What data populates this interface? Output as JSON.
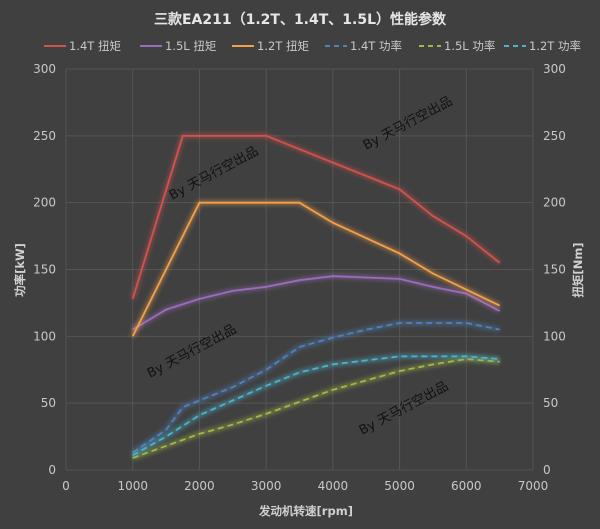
{
  "chart_data": {
    "type": "line",
    "title": "三款EA211（1.2T、1.4T、1.5L）性能参数",
    "xlabel": "发动机转速[rpm]",
    "ylabel_left": "功率[kW]",
    "ylabel_right": "扭矩[Nm]",
    "xlim": [
      0,
      7000
    ],
    "ylim_left": [
      0,
      300
    ],
    "ylim_right": [
      0,
      300
    ],
    "xticks": [
      0,
      1000,
      2000,
      3000,
      4000,
      5000,
      6000,
      7000
    ],
    "yticks": [
      0,
      50,
      100,
      150,
      200,
      250,
      300
    ],
    "grid": true,
    "legend_position": "top",
    "series": [
      {
        "name": "1.4T 扭矩",
        "axis": "right",
        "style": "solid",
        "color": "#d0534e",
        "x": [
          1000,
          1750,
          3000,
          3500,
          4000,
          5000,
          5500,
          6000,
          6500
        ],
        "y": [
          128,
          250,
          250,
          240,
          230,
          210,
          190,
          175,
          155
        ]
      },
      {
        "name": "1.5L 扭矩",
        "axis": "right",
        "style": "solid",
        "color": "#9b6cbb",
        "x": [
          1000,
          1500,
          2000,
          2500,
          3000,
          3500,
          4000,
          5000,
          5500,
          6000,
          6500
        ],
        "y": [
          105,
          120,
          128,
          134,
          137,
          142,
          145,
          143,
          137,
          132,
          119
        ]
      },
      {
        "name": "1.2T 扭矩",
        "axis": "right",
        "style": "solid",
        "color": "#f2a04a",
        "x": [
          1000,
          2000,
          3500,
          4000,
          5000,
          5500,
          6000,
          6500
        ],
        "y": [
          100,
          200,
          200,
          185,
          162,
          147,
          135,
          123
        ]
      },
      {
        "name": "1.4T 功率",
        "axis": "left",
        "style": "dashed",
        "color": "#4f82bd",
        "x": [
          1000,
          1500,
          1750,
          2000,
          2500,
          3000,
          3500,
          4000,
          4500,
          5000,
          6000,
          6500
        ],
        "y": [
          13,
          30,
          47,
          52,
          62,
          75,
          92,
          99,
          105,
          110,
          110,
          105
        ]
      },
      {
        "name": "1.5L 功率",
        "axis": "left",
        "style": "dashed",
        "color": "#a2b845",
        "x": [
          1000,
          1500,
          2000,
          2500,
          3000,
          3500,
          4000,
          4500,
          5000,
          5500,
          6000,
          6500
        ],
        "y": [
          9,
          18,
          27,
          34,
          42,
          51,
          60,
          67,
          74,
          79,
          83,
          81
        ]
      },
      {
        "name": "1.2T 功率",
        "axis": "left",
        "style": "dashed",
        "color": "#4bb3cc",
        "x": [
          1000,
          1500,
          2000,
          2500,
          3000,
          3500,
          4000,
          4500,
          5000,
          6000,
          6500
        ],
        "y": [
          11,
          25,
          41,
          52,
          63,
          73,
          79,
          82,
          85,
          85,
          83
        ]
      }
    ]
  },
  "watermark": "By 天马行空出品"
}
